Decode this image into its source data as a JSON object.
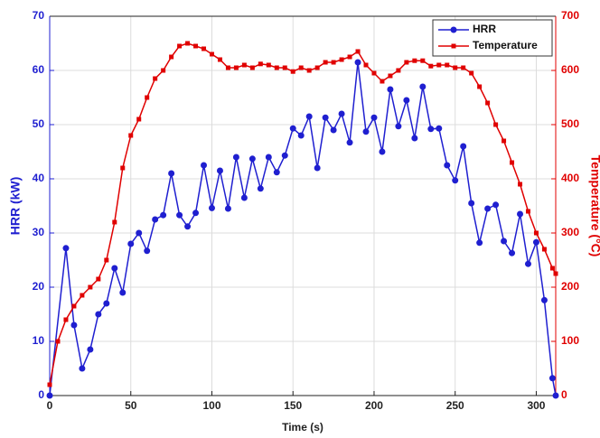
{
  "chart_data": {
    "type": "line",
    "xlabel": "Time (s)",
    "ylabel": "HRR (kW)",
    "y2label": "Temperature (°C)",
    "xlim": [
      0,
      312
    ],
    "xticks": [
      0,
      50,
      100,
      150,
      200,
      250,
      300
    ],
    "ylim": [
      0,
      70
    ],
    "yticks": [
      0,
      10,
      20,
      30,
      40,
      50,
      60,
      70
    ],
    "y2lim": [
      0,
      700
    ],
    "y2ticks": [
      0,
      100,
      200,
      300,
      400,
      500,
      600,
      700
    ],
    "grid": true,
    "legend": "top-right",
    "series": [
      {
        "name": "HRR",
        "color": "#1f1fd0",
        "marker": "circle",
        "axis": "y",
        "x": [
          0,
          10,
          15,
          20,
          25,
          30,
          35,
          40,
          45,
          50,
          55,
          60,
          65,
          70,
          75,
          80,
          85,
          90,
          95,
          100,
          105,
          110,
          115,
          120,
          125,
          130,
          135,
          140,
          145,
          150,
          155,
          160,
          165,
          170,
          175,
          180,
          185,
          190,
          195,
          200,
          205,
          210,
          215,
          220,
          225,
          230,
          235,
          240,
          245,
          250,
          255,
          260,
          265,
          270,
          275,
          280,
          285,
          290,
          295,
          300,
          305,
          310,
          312
        ],
        "values": [
          0,
          27.2,
          13,
          5,
          8.5,
          15,
          17,
          23.5,
          19,
          28,
          30,
          26.7,
          32.5,
          33.3,
          41,
          33.3,
          31.2,
          33.7,
          42.5,
          34.6,
          41.5,
          34.5,
          44,
          36.5,
          43.7,
          38.2,
          44,
          41.2,
          44.3,
          49.3,
          48,
          51.5,
          42,
          51.3,
          49,
          52,
          46.7,
          61.5,
          48.7,
          51.3,
          45,
          56.5,
          49.7,
          54.5,
          47.5,
          57,
          49.2,
          49.3,
          42.5,
          39.7,
          46,
          35.5,
          28.2,
          34.5,
          35.2,
          28.5,
          26.3,
          33.5,
          24.3,
          28.3,
          17.6,
          3.2,
          0
        ]
      },
      {
        "name": "Temperature",
        "color": "#e00000",
        "marker": "square",
        "axis": "y2",
        "x": [
          0,
          5,
          10,
          15,
          20,
          25,
          30,
          35,
          40,
          45,
          50,
          55,
          60,
          65,
          70,
          75,
          80,
          85,
          90,
          95,
          100,
          105,
          110,
          115,
          120,
          125,
          130,
          135,
          140,
          145,
          150,
          155,
          160,
          165,
          170,
          175,
          180,
          185,
          190,
          195,
          200,
          205,
          210,
          215,
          220,
          225,
          230,
          235,
          240,
          245,
          250,
          255,
          260,
          265,
          270,
          275,
          280,
          285,
          290,
          295,
          300,
          305,
          310,
          312
        ],
        "values": [
          20,
          100,
          140,
          165,
          185,
          200,
          215,
          250,
          320,
          420,
          480,
          510,
          550,
          585,
          600,
          625,
          645,
          650,
          645,
          640,
          630,
          620,
          605,
          605,
          610,
          605,
          612,
          610,
          605,
          605,
          598,
          605,
          600,
          605,
          615,
          615,
          620,
          625,
          635,
          610,
          595,
          580,
          590,
          600,
          615,
          618,
          618,
          608,
          610,
          610,
          605,
          605,
          595,
          570,
          540,
          500,
          470,
          430,
          390,
          340,
          300,
          270,
          235,
          225
        ]
      }
    ]
  }
}
